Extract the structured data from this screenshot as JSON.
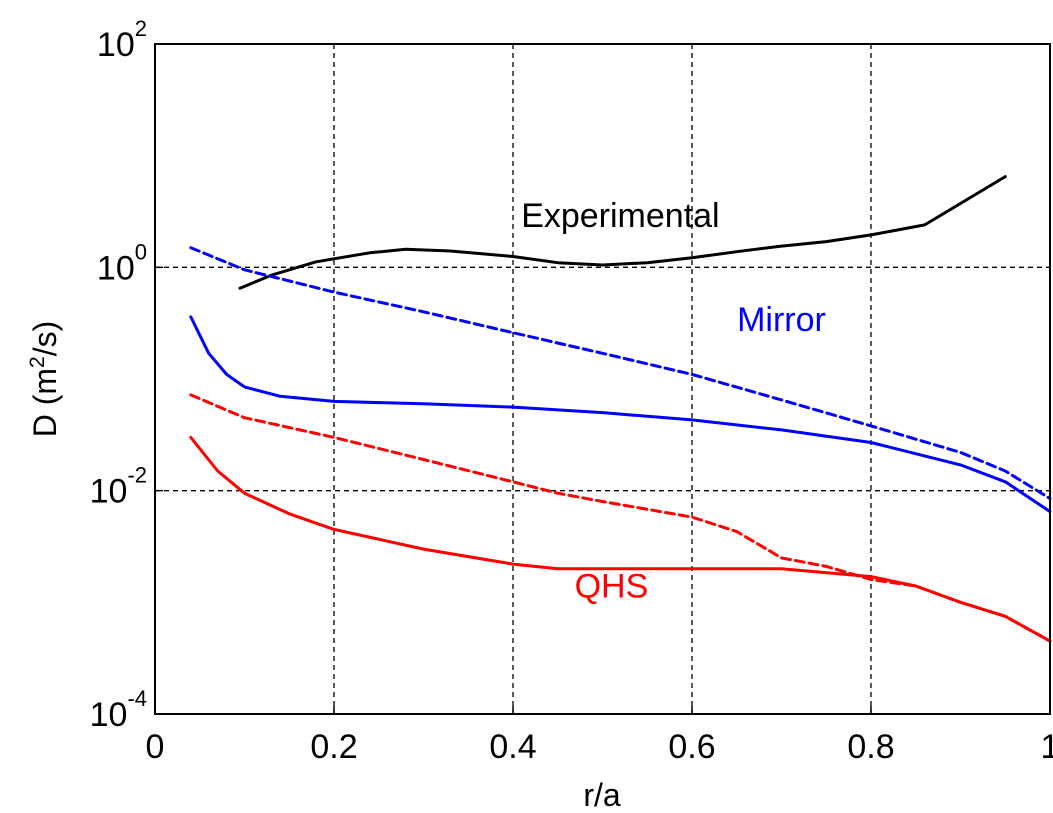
{
  "chart_data": {
    "type": "line",
    "title": "",
    "xlabel": "r/a",
    "ylabel": {
      "prefix": "D (m",
      "sup": "2",
      "suffix": "/s)"
    },
    "xlim": [
      0,
      1
    ],
    "ylim": [
      0.0001,
      100
    ],
    "yscale": "log",
    "grid": true,
    "x_ticks": [
      "0",
      "0.2",
      "0.4",
      "0.6",
      "0.8",
      "1"
    ],
    "y_ticks": [
      {
        "base": "10",
        "exp": "-4",
        "value": 0.0001
      },
      {
        "base": "10",
        "exp": "-2",
        "value": 0.01
      },
      {
        "base": "10",
        "exp": "0",
        "value": 1
      },
      {
        "base": "10",
        "exp": "2",
        "value": 100
      }
    ],
    "annotations": [
      {
        "text": "Experimental",
        "color": "#000000",
        "x": 0.52,
        "y": 2.3
      },
      {
        "text": "Mirror",
        "color": "#0000ff",
        "x": 0.7,
        "y": 0.27
      },
      {
        "text": "QHS",
        "color": "#ff0000",
        "x": 0.51,
        "y": 0.0011
      }
    ],
    "series": [
      {
        "color": "#000000",
        "style": "solid",
        "x": [
          0.095,
          0.13,
          0.18,
          0.24,
          0.28,
          0.33,
          0.4,
          0.45,
          0.5,
          0.55,
          0.6,
          0.65,
          0.7,
          0.75,
          0.8,
          0.86,
          0.95
        ],
        "y": [
          0.65,
          0.85,
          1.12,
          1.35,
          1.45,
          1.4,
          1.25,
          1.1,
          1.05,
          1.1,
          1.22,
          1.38,
          1.55,
          1.7,
          1.95,
          2.4,
          6.5
        ]
      },
      {
        "color": "#0000ff",
        "style": "dashed",
        "x": [
          0.04,
          0.1,
          0.2,
          0.3,
          0.4,
          0.5,
          0.6,
          0.7,
          0.8,
          0.9,
          0.95,
          1.0
        ],
        "y": [
          1.5,
          0.95,
          0.6,
          0.4,
          0.26,
          0.17,
          0.11,
          0.065,
          0.038,
          0.022,
          0.015,
          0.0085
        ]
      },
      {
        "color": "#0000ff",
        "style": "solid",
        "x": [
          0.04,
          0.06,
          0.08,
          0.1,
          0.14,
          0.2,
          0.3,
          0.4,
          0.5,
          0.6,
          0.7,
          0.8,
          0.9,
          0.95,
          1.0
        ],
        "y": [
          0.36,
          0.17,
          0.11,
          0.085,
          0.07,
          0.063,
          0.06,
          0.056,
          0.05,
          0.043,
          0.035,
          0.027,
          0.017,
          0.012,
          0.0065
        ]
      },
      {
        "color": "#ff0000",
        "style": "dashed",
        "x": [
          0.04,
          0.1,
          0.2,
          0.3,
          0.4,
          0.45,
          0.5,
          0.6,
          0.65,
          0.7,
          0.75,
          0.8,
          0.85,
          0.9,
          0.95,
          1.0
        ],
        "y": [
          0.072,
          0.045,
          0.03,
          0.019,
          0.012,
          0.0095,
          0.008,
          0.0058,
          0.0043,
          0.0025,
          0.0021,
          0.0016,
          0.0014,
          0.001,
          0.00075,
          0.00045
        ]
      },
      {
        "color": "#ff0000",
        "style": "solid",
        "x": [
          0.04,
          0.07,
          0.1,
          0.15,
          0.2,
          0.3,
          0.4,
          0.45,
          0.5,
          0.6,
          0.7,
          0.8,
          0.85,
          0.9,
          0.95,
          1.0
        ],
        "y": [
          0.03,
          0.015,
          0.0095,
          0.0062,
          0.0045,
          0.003,
          0.0022,
          0.002,
          0.002,
          0.002,
          0.002,
          0.0017,
          0.0014,
          0.001,
          0.00075,
          0.00045
        ]
      }
    ]
  }
}
